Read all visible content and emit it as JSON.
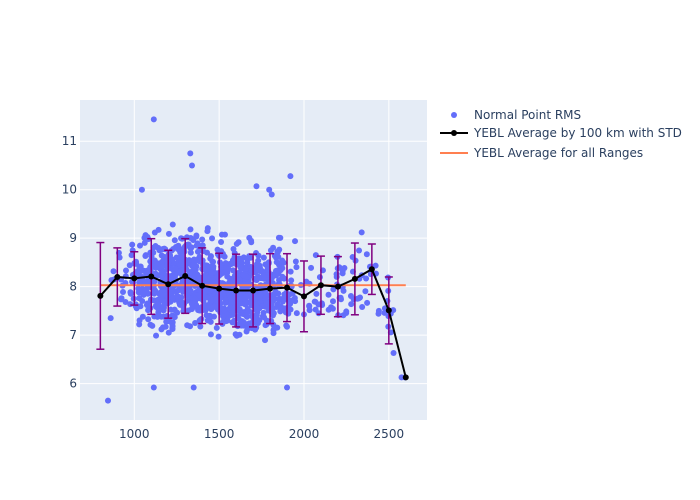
{
  "chart_data": {
    "type": "scatter",
    "title": "",
    "xlabel": "",
    "ylabel": "",
    "xlim": [
      680,
      2725
    ],
    "ylim": [
      5.25,
      11.85
    ],
    "x_ticks": [
      1000,
      1500,
      2000,
      2500
    ],
    "y_ticks": [
      6,
      7,
      8,
      9,
      10,
      11
    ],
    "grid": true,
    "legend_position": "right",
    "colors": {
      "plot_bg": "#e5ecf6",
      "grid": "#ffffff",
      "points": "#636efa",
      "avg_line": "#000000",
      "error_bars": "#800080",
      "overall": "#ff7f50"
    },
    "series": [
      {
        "name": "Normal Point RMS",
        "kind": "scatter",
        "point_count": 1200,
        "distribution_note": "dense cloud between x≈850 and x≈2550 centered near y≈8",
        "outliers": [
          {
            "x": 1115,
            "y": 11.45
          },
          {
            "x": 1330,
            "y": 10.75
          },
          {
            "x": 1340,
            "y": 10.5
          },
          {
            "x": 1920,
            "y": 10.28
          },
          {
            "x": 1720,
            "y": 10.07
          },
          {
            "x": 1795,
            "y": 10.0
          },
          {
            "x": 1045,
            "y": 10.0
          },
          {
            "x": 1810,
            "y": 9.9
          },
          {
            "x": 845,
            "y": 5.65
          },
          {
            "x": 1115,
            "y": 5.92
          },
          {
            "x": 1350,
            "y": 5.92
          },
          {
            "x": 1900,
            "y": 5.92
          },
          {
            "x": 2575,
            "y": 6.13
          },
          {
            "x": 2595,
            "y": 6.13
          }
        ]
      },
      {
        "name": "YEBL Average by 100 km with STD",
        "kind": "line_errorbar",
        "points": [
          {
            "x": 800,
            "y": 7.81,
            "std": 1.1
          },
          {
            "x": 900,
            "y": 8.2,
            "std": 0.6
          },
          {
            "x": 1000,
            "y": 8.17,
            "std": 0.55
          },
          {
            "x": 1100,
            "y": 8.21,
            "std": 0.78
          },
          {
            "x": 1200,
            "y": 8.05,
            "std": 0.7
          },
          {
            "x": 1300,
            "y": 8.22,
            "std": 0.77
          },
          {
            "x": 1400,
            "y": 8.02,
            "std": 0.78
          },
          {
            "x": 1500,
            "y": 7.96,
            "std": 0.73
          },
          {
            "x": 1600,
            "y": 7.92,
            "std": 0.75
          },
          {
            "x": 1700,
            "y": 7.92,
            "std": 0.75
          },
          {
            "x": 1800,
            "y": 7.96,
            "std": 0.72
          },
          {
            "x": 1900,
            "y": 7.98,
            "std": 0.7
          },
          {
            "x": 2000,
            "y": 7.8,
            "std": 0.73
          },
          {
            "x": 2100,
            "y": 8.03,
            "std": 0.6
          },
          {
            "x": 2200,
            "y": 8.0,
            "std": 0.62
          },
          {
            "x": 2300,
            "y": 8.16,
            "std": 0.74
          },
          {
            "x": 2400,
            "y": 8.36,
            "std": 0.52
          },
          {
            "x": 2500,
            "y": 7.51,
            "std": 0.69
          },
          {
            "x": 2600,
            "y": 6.13,
            "std": 0
          }
        ]
      },
      {
        "name": "YEBL Average for all Ranges",
        "kind": "hline",
        "x": [
          800,
          2600
        ],
        "y": 8.03
      }
    ]
  }
}
